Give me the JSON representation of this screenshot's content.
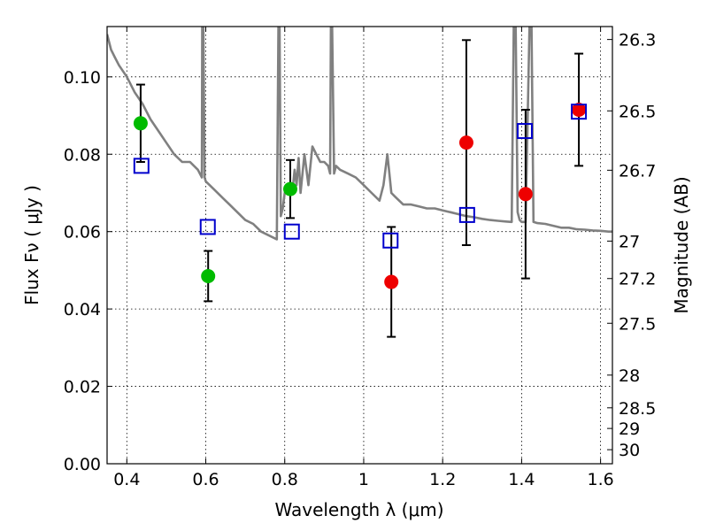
{
  "chart_data": {
    "type": "scatter",
    "xlabel": "Wavelength  λ (μm)",
    "ylabel": "Flux  Fν  ( μJy )",
    "y2label": "Magnitude (AB)",
    "xlim": [
      0.35,
      1.63
    ],
    "ylim": [
      0.0,
      0.113
    ],
    "grid": true,
    "x_ticks": [
      {
        "value": 0.4,
        "label": "0.4"
      },
      {
        "value": 0.6,
        "label": "0.6"
      },
      {
        "value": 0.8,
        "label": "0.8"
      },
      {
        "value": 1.0,
        "label": "1"
      },
      {
        "value": 1.2,
        "label": "1.2"
      },
      {
        "value": 1.4,
        "label": "1.4"
      },
      {
        "value": 1.6,
        "label": "1.6"
      }
    ],
    "y_ticks": [
      {
        "value": 0.0,
        "label": "0.00"
      },
      {
        "value": 0.02,
        "label": "0.02"
      },
      {
        "value": 0.04,
        "label": "0.04"
      },
      {
        "value": 0.06,
        "label": "0.06"
      },
      {
        "value": 0.08,
        "label": "0.08"
      },
      {
        "value": 0.1,
        "label": "0.10"
      }
    ],
    "y2_ticks": [
      {
        "value": 26.3,
        "label": "26.3"
      },
      {
        "value": 26.5,
        "label": "26.5"
      },
      {
        "value": 26.7,
        "label": "26.7"
      },
      {
        "value": 27.0,
        "label": "27"
      },
      {
        "value": 27.2,
        "label": "27.2"
      },
      {
        "value": 27.5,
        "label": "27.5"
      },
      {
        "value": 28.0,
        "label": "28"
      },
      {
        "value": 28.5,
        "label": "28.5"
      },
      {
        "value": 29.0,
        "label": "29"
      },
      {
        "value": 30.0,
        "label": "30"
      }
    ],
    "colors": {
      "optical": "#00bb00",
      "infrared": "#ee0000",
      "model_points": "#0000cc",
      "model_curve": "#808080",
      "errorbar": "#000000"
    },
    "series": [
      {
        "marker": "circle",
        "color": "#00bb00",
        "points": [
          {
            "x": 0.435,
            "y": 0.088,
            "err": 0.01
          },
          {
            "x": 0.606,
            "y": 0.0485,
            "err": 0.0065
          },
          {
            "x": 0.814,
            "y": 0.071,
            "err": 0.0075
          }
        ]
      },
      {
        "marker": "circle",
        "color": "#ee0000",
        "points": [
          {
            "x": 1.07,
            "y": 0.047,
            "err": 0.0142
          },
          {
            "x": 1.26,
            "y": 0.083,
            "err": 0.0265
          },
          {
            "x": 1.41,
            "y": 0.0697,
            "err": 0.0218
          },
          {
            "x": 1.545,
            "y": 0.0915,
            "err": 0.0145
          }
        ]
      },
      {
        "marker": "open-square",
        "color": "#0000cc",
        "points": [
          {
            "x": 0.437,
            "y": 0.077
          },
          {
            "x": 0.605,
            "y": 0.0612
          },
          {
            "x": 0.818,
            "y": 0.06
          },
          {
            "x": 1.068,
            "y": 0.0577
          },
          {
            "x": 1.262,
            "y": 0.0643
          },
          {
            "x": 1.408,
            "y": 0.086
          },
          {
            "x": 1.545,
            "y": 0.091
          }
        ]
      },
      {
        "marker": "line",
        "color": "#808080",
        "x": [
          0.35,
          0.36,
          0.37,
          0.38,
          0.4,
          0.42,
          0.44,
          0.46,
          0.48,
          0.5,
          0.52,
          0.54,
          0.56,
          0.58,
          0.59,
          0.591,
          0.594,
          0.597,
          0.6,
          0.62,
          0.64,
          0.66,
          0.68,
          0.7,
          0.72,
          0.74,
          0.76,
          0.78,
          0.784,
          0.787,
          0.79,
          0.795,
          0.8,
          0.81,
          0.82,
          0.825,
          0.83,
          0.835,
          0.84,
          0.85,
          0.86,
          0.87,
          0.875,
          0.88,
          0.89,
          0.9,
          0.91,
          0.915,
          0.917,
          0.92,
          0.925,
          0.93,
          0.94,
          0.96,
          0.98,
          1.0,
          1.02,
          1.04,
          1.05,
          1.06,
          1.065,
          1.07,
          1.08,
          1.1,
          1.12,
          1.14,
          1.16,
          1.18,
          1.2,
          1.22,
          1.24,
          1.26,
          1.28,
          1.3,
          1.32,
          1.34,
          1.36,
          1.375,
          1.38,
          1.385,
          1.39,
          1.395,
          1.4,
          1.41,
          1.42,
          1.425,
          1.43,
          1.44,
          1.46,
          1.48,
          1.5,
          1.52,
          1.54,
          1.56,
          1.58,
          1.6,
          1.62,
          1.63
        ],
        "y": [
          0.111,
          0.107,
          0.105,
          0.103,
          0.1,
          0.096,
          0.093,
          0.089,
          0.086,
          0.083,
          0.08,
          0.078,
          0.078,
          0.076,
          0.074,
          0.113,
          0.113,
          0.074,
          0.073,
          0.071,
          0.069,
          0.067,
          0.065,
          0.063,
          0.062,
          0.06,
          0.059,
          0.058,
          0.113,
          0.113,
          0.064,
          0.066,
          0.07,
          0.072,
          0.071,
          0.076,
          0.072,
          0.079,
          0.07,
          0.08,
          0.072,
          0.082,
          0.081,
          0.08,
          0.078,
          0.078,
          0.077,
          0.075,
          0.113,
          0.113,
          0.075,
          0.077,
          0.076,
          0.075,
          0.074,
          0.072,
          0.07,
          0.068,
          0.072,
          0.08,
          0.075,
          0.07,
          0.069,
          0.067,
          0.067,
          0.0665,
          0.066,
          0.066,
          0.0655,
          0.065,
          0.0645,
          0.064,
          0.0637,
          0.0633,
          0.063,
          0.0628,
          0.0626,
          0.0625,
          0.113,
          0.113,
          0.065,
          0.063,
          0.0625,
          0.0625,
          0.113,
          0.113,
          0.0625,
          0.0622,
          0.062,
          0.0615,
          0.061,
          0.061,
          0.0606,
          0.0605,
          0.0603,
          0.0602,
          0.06,
          0.06
        ]
      }
    ]
  }
}
